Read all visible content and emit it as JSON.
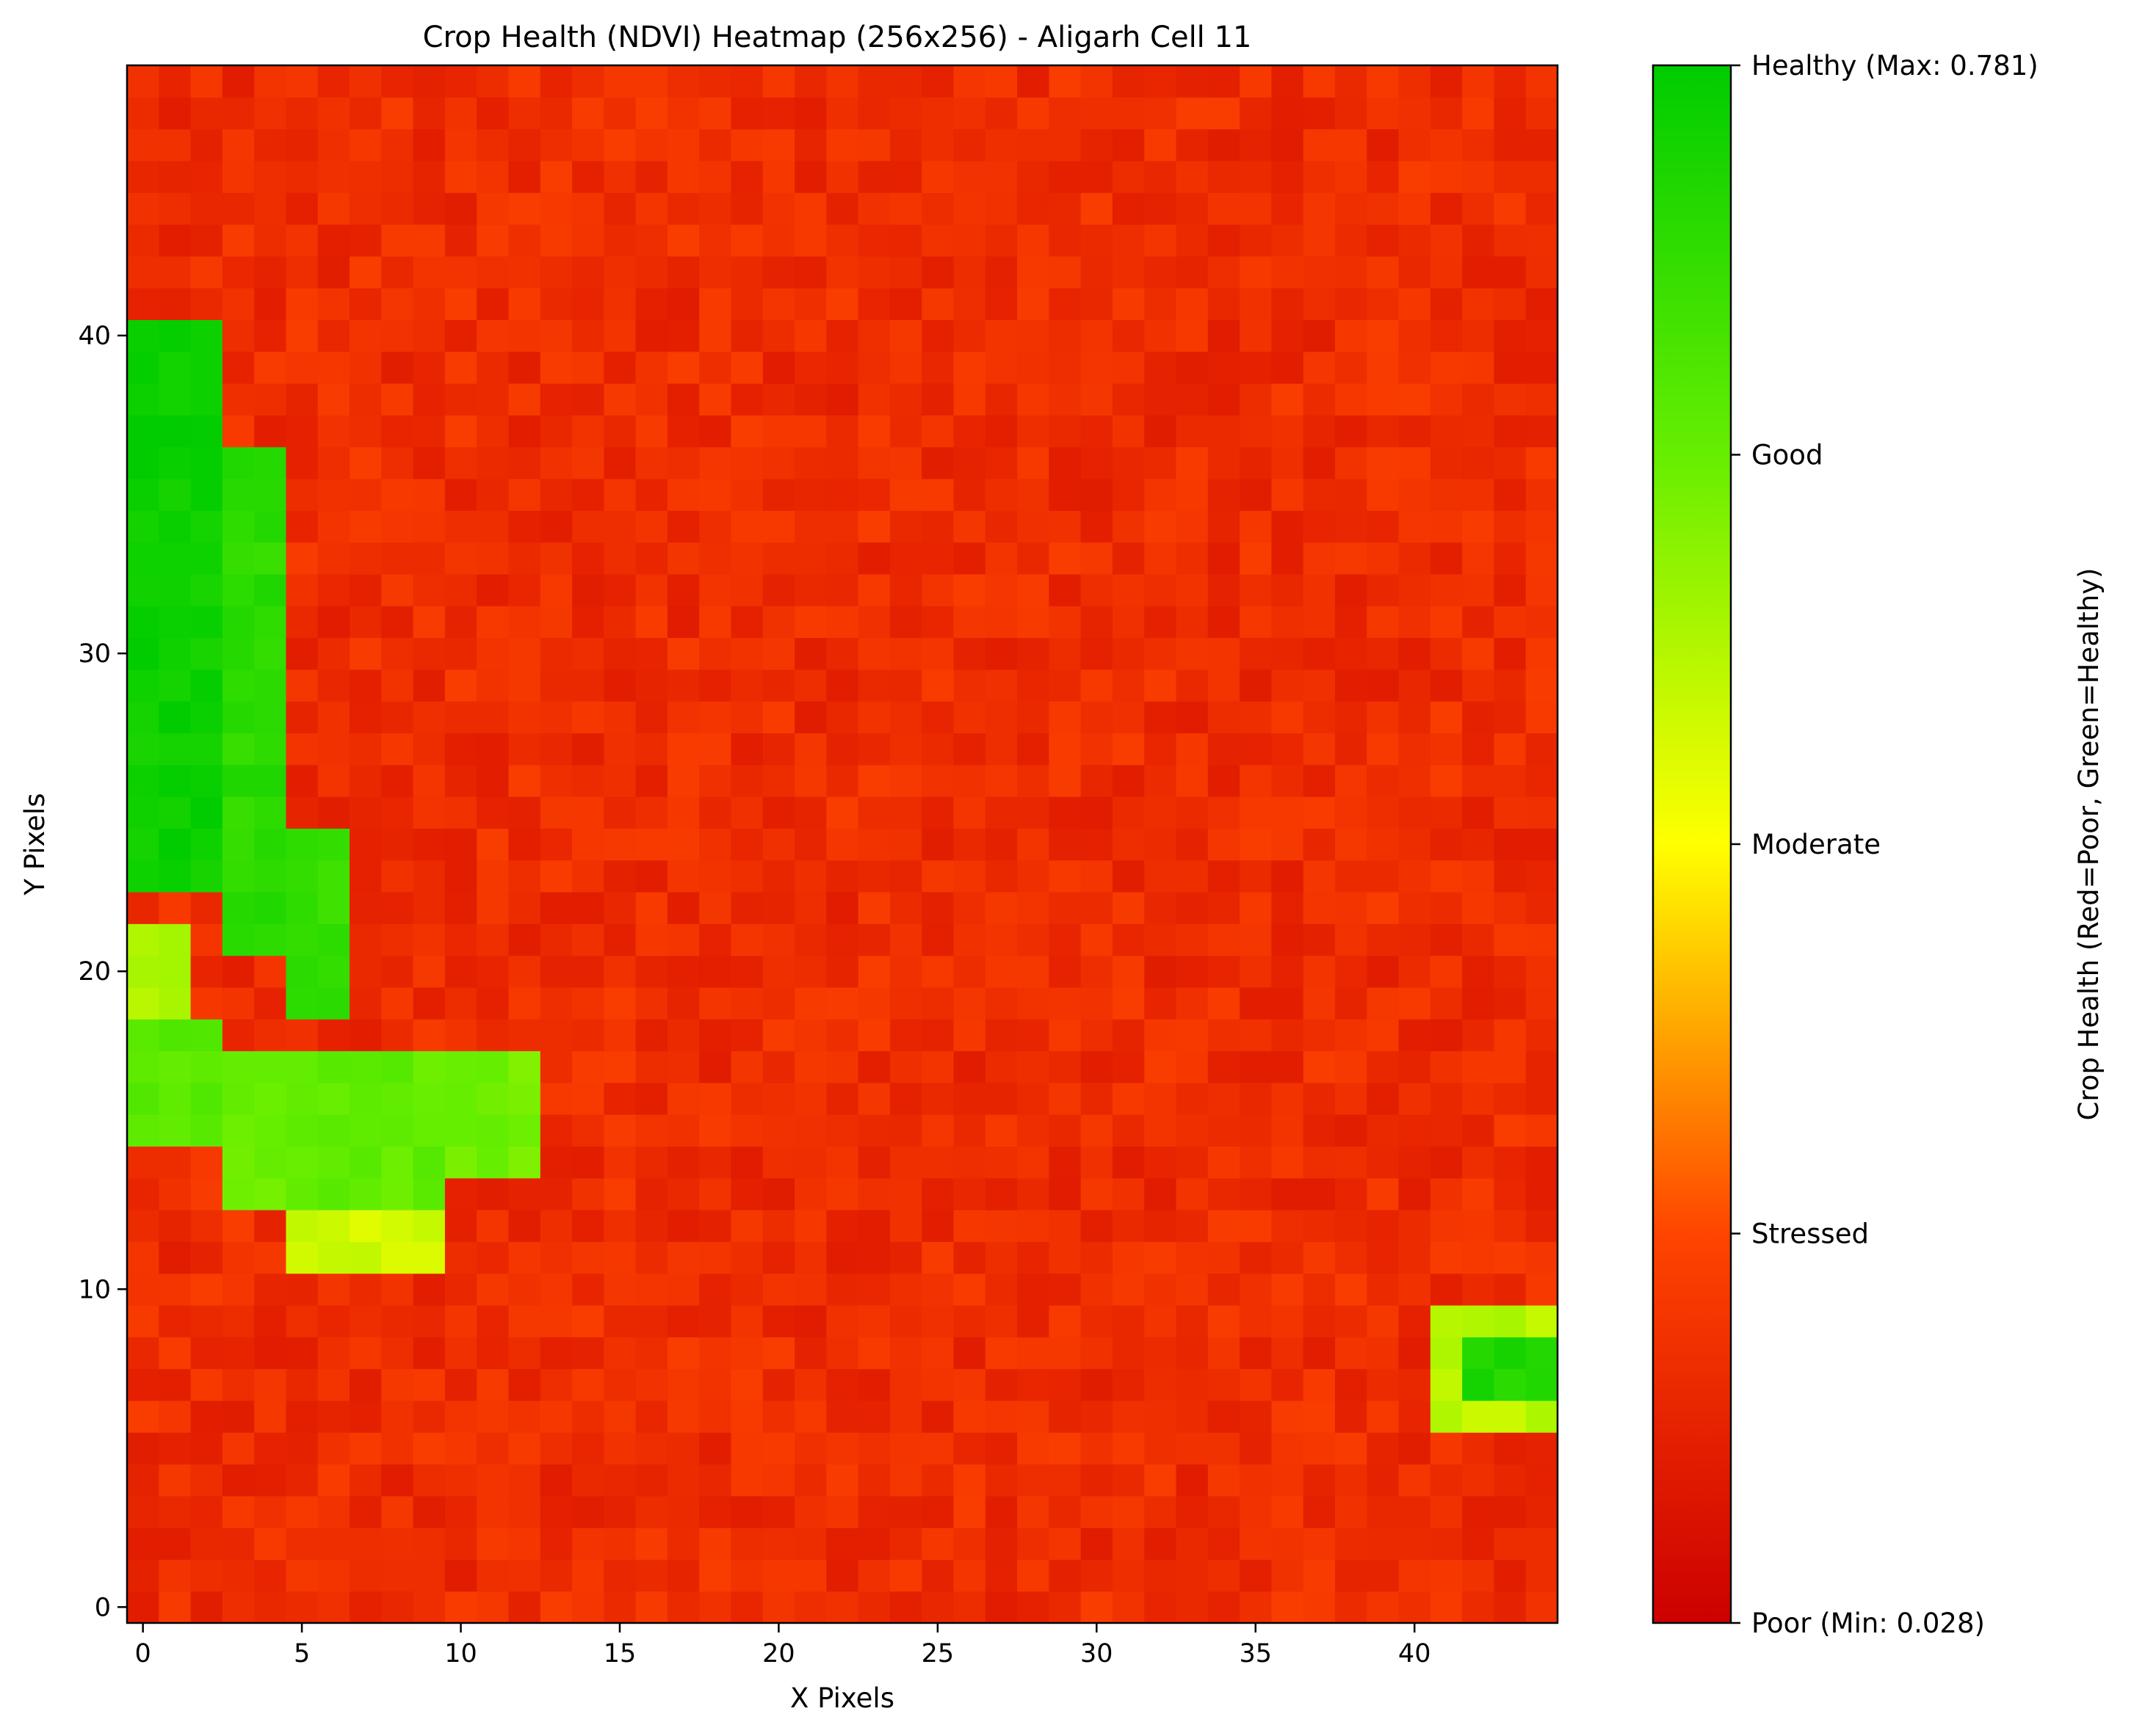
{
  "chart_data": {
    "type": "heatmap",
    "title": "Crop Health (NDVI) Heatmap (256x256) - Aligarh Cell 11",
    "xlabel": "X Pixels",
    "ylabel": "Y Pixels",
    "x_range": [
      -0.5,
      44.5
    ],
    "y_range": [
      -0.5,
      48.5
    ],
    "x_ticks": [
      0,
      5,
      10,
      15,
      20,
      25,
      30,
      35,
      40
    ],
    "y_ticks": [
      0,
      10,
      20,
      30,
      40
    ],
    "grid": false,
    "colormap": [
      "#cc0000",
      "#ff4400",
      "#ffff00",
      "#66ee00",
      "#00cc00"
    ],
    "colorbar": {
      "label": "Crop Health (Red=Poor, Green=Healthy)",
      "min": 0.028,
      "max": 0.781,
      "tick_labels": [
        "Poor (Min: 0.028)",
        "Stressed",
        "Moderate",
        "Good",
        "Healthy (Max: 0.781)"
      ]
    },
    "ndvi_base": 0.15,
    "high_regions": [
      {
        "x": [
          0,
          2
        ],
        "y": [
          23,
          40
        ],
        "ndvi": 0.76
      },
      {
        "x": [
          3,
          4
        ],
        "y": [
          21,
          36
        ],
        "ndvi": 0.7
      },
      {
        "x": [
          5,
          6
        ],
        "y": [
          19,
          24
        ],
        "ndvi": 0.68
      },
      {
        "x": [
          0,
          2
        ],
        "y": [
          15,
          18
        ],
        "ndvi": 0.61
      },
      {
        "x": [
          3,
          9
        ],
        "y": [
          13,
          17
        ],
        "ndvi": 0.6
      },
      {
        "x": [
          10,
          12
        ],
        "y": [
          14,
          17
        ],
        "ndvi": 0.58
      },
      {
        "x": [
          0,
          1
        ],
        "y": [
          19,
          21
        ],
        "ndvi": 0.5
      },
      {
        "x": [
          5,
          9
        ],
        "y": [
          11,
          12
        ],
        "ndvi": 0.46
      },
      {
        "x": [
          42,
          44
        ],
        "y": [
          7,
          8
        ],
        "ndvi": 0.72
      },
      {
        "x": [
          41,
          44
        ],
        "y": [
          6,
          9
        ],
        "ndvi": 0.49
      }
    ]
  }
}
